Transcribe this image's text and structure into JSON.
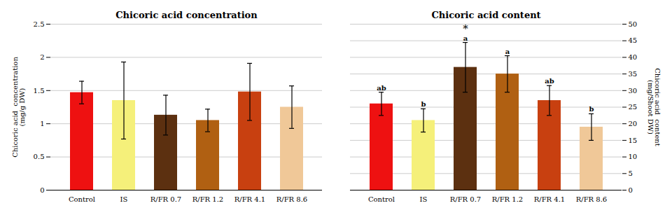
{
  "chart_data": [
    {
      "type": "bar",
      "title": "Chicoric acid concentration",
      "ylabel": "Chicoric acid  concentration\n(mg/g DW)",
      "categories": [
        "Control",
        "IS",
        "R/FR 0.7",
        "R/FR 1.2",
        "R/FR 4.1",
        "R/FR 8.6"
      ],
      "values": [
        1.47,
        1.35,
        1.13,
        1.05,
        1.48,
        1.25
      ],
      "errors": [
        0.17,
        0.58,
        0.3,
        0.17,
        0.43,
        0.32
      ],
      "colors": [
        "#ee1111",
        "#f5f07a",
        "#5c3010",
        "#b06012",
        "#c84010",
        "#f0c898"
      ],
      "ylim": [
        0,
        2.5
      ],
      "yticks": [
        0,
        0.5,
        1,
        1.5,
        2,
        2.5
      ],
      "grid": true
    },
    {
      "type": "bar",
      "title": "Chicoric acid content",
      "ylabel": "Chicoric acid  content\n(mg/Shoot DW)",
      "categories": [
        "Control",
        "IS",
        "R/FR 0.7",
        "R/FR 1.2",
        "R/FR 4.1",
        "R/FR 8.6"
      ],
      "values": [
        26,
        21,
        37,
        35,
        27,
        19
      ],
      "errors": [
        3.5,
        3.5,
        7.5,
        5.5,
        4.5,
        4.0
      ],
      "colors": [
        "#ee1111",
        "#f5f07a",
        "#5c3010",
        "#b06012",
        "#c84010",
        "#f0c898"
      ],
      "significance_labels": [
        "ab",
        "b",
        "a",
        "a",
        "ab",
        "b"
      ],
      "annotations": [
        {
          "text": "*",
          "x": "R/FR 0.7",
          "y": 47.5
        }
      ],
      "ylim": [
        0,
        50
      ],
      "yticks": [
        0,
        5,
        10,
        15,
        20,
        25,
        30,
        35,
        40,
        45,
        50
      ],
      "grid": true
    }
  ]
}
